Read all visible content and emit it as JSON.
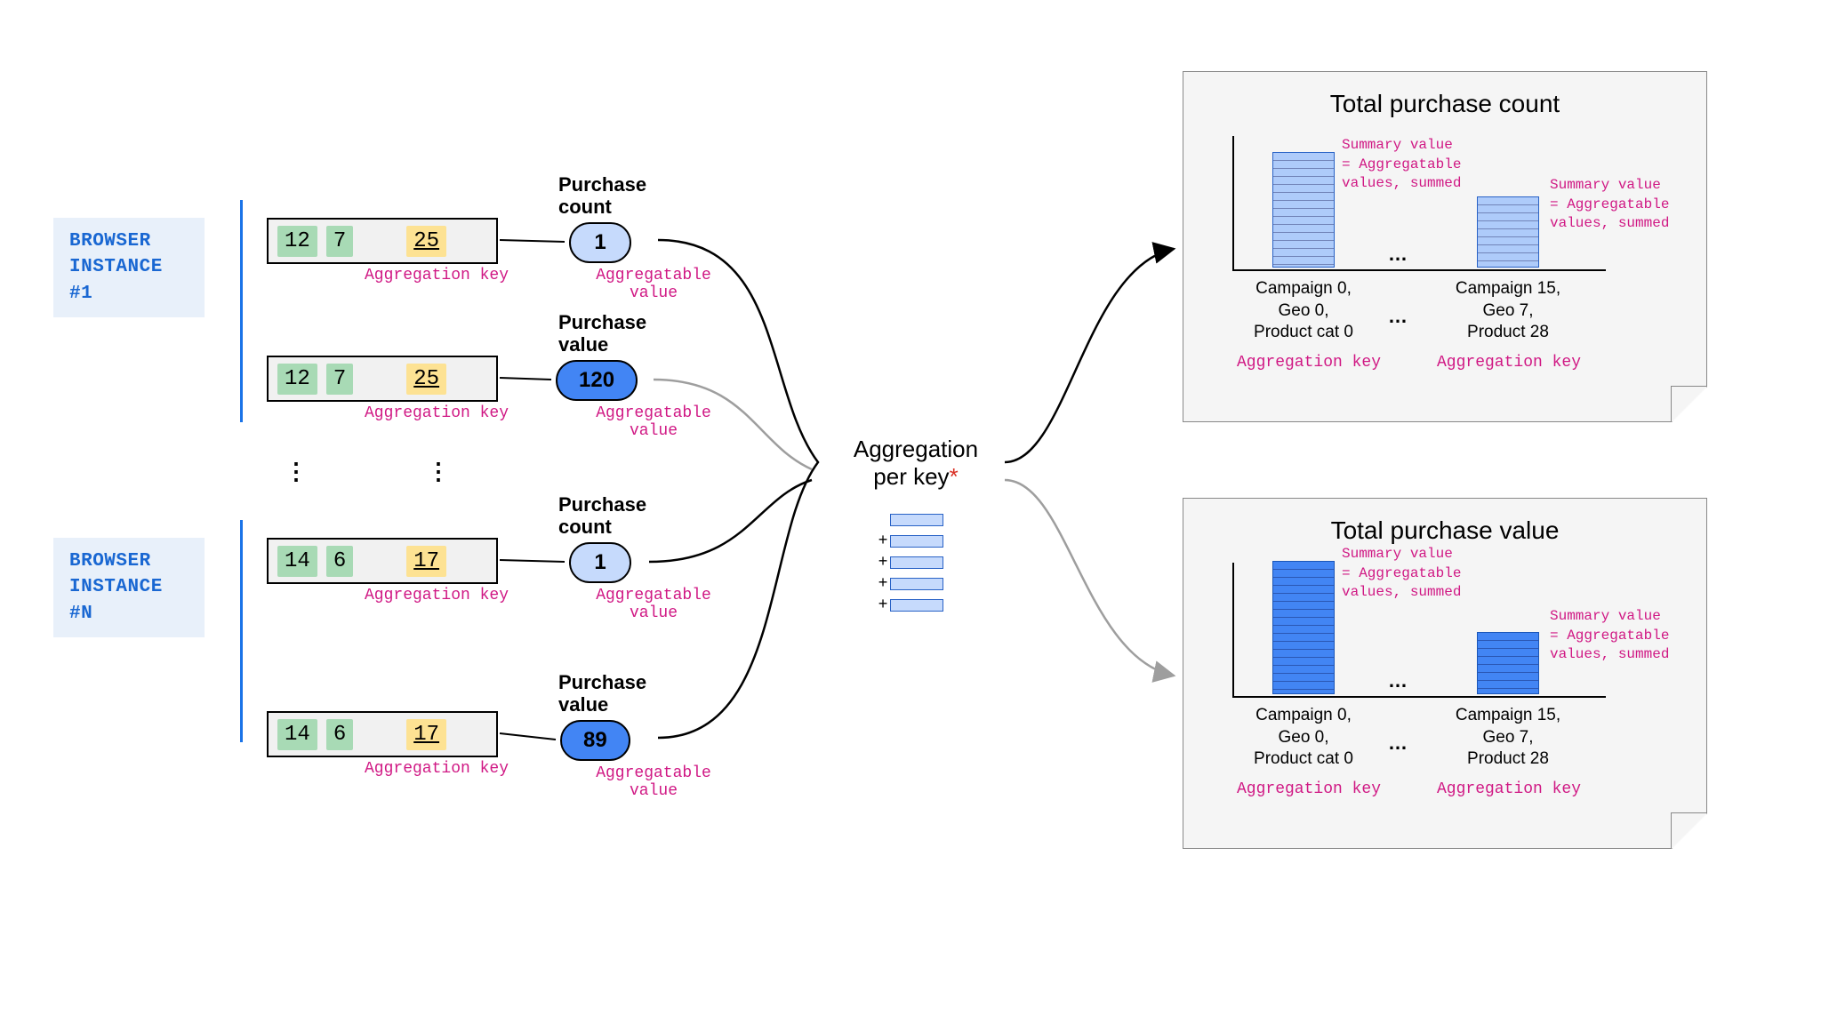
{
  "diagram": {
    "type": "flowchart",
    "background_color": "#ffffff"
  },
  "colors": {
    "browser_label_bg": "#e8f0fa",
    "browser_label_text": "#1967d2",
    "vbar": "#1a73e8",
    "keybox_bg": "#f1f1f1",
    "keycell_green": "#a8dab5",
    "keycell_yellow": "#fde293",
    "pink": "#d01884",
    "pill_light": "#c6dafc",
    "pill_dark": "#4285f4",
    "asterisk": "#d93025",
    "panel_bg": "#f5f5f5",
    "panel_border": "#888888",
    "bar_light_fill": "#aecbfa",
    "bar_light_border": "#2962c6",
    "bar_dark_fill": "#4285f4",
    "bar_dark_border": "#1a56b8",
    "arrow_black": "#000000",
    "arrow_gray": "#9e9e9e"
  },
  "fontsizes": {
    "browser_label": 21,
    "keycell": 24,
    "pink_caption": 18,
    "pill_title": 22,
    "pill_value": 24,
    "agg_label": 26,
    "panel_title": 28,
    "pink_note": 16,
    "x_label": 19
  },
  "browser1": {
    "line1": "BROWSER",
    "line2": "INSTANCE #1"
  },
  "browserN": {
    "line1": "BROWSER",
    "line2": "INSTANCE #N"
  },
  "keyrow1": {
    "a": "12",
    "b": "7",
    "c": "25"
  },
  "keyrow2": {
    "a": "12",
    "b": "7",
    "c": "25"
  },
  "keyrow3": {
    "a": "14",
    "b": "6",
    "c": "17"
  },
  "keyrow4": {
    "a": "14",
    "b": "6",
    "c": "17"
  },
  "captions": {
    "aggkey": "Aggregation key",
    "aggval_l1": "Aggregatable",
    "aggval_l2": "value"
  },
  "pill1": {
    "title_l1": "Purchase",
    "title_l2": "count",
    "value": "1"
  },
  "pill2": {
    "title_l1": "Purchase",
    "title_l2": "value",
    "value": "120"
  },
  "pill3": {
    "title_l1": "Purchase",
    "title_l2": "count",
    "value": "1"
  },
  "pill4": {
    "title_l1": "Purchase",
    "title_l2": "value",
    "value": "89"
  },
  "agg": {
    "l1": "Aggregation",
    "l2": "per key",
    "ast": "*"
  },
  "panelA": {
    "title": "Total purchase count",
    "note_l1": "Summary value",
    "note_l2": "= Aggregatable",
    "note_l3": "values, summed",
    "bar1_height": 130,
    "bar2_height": 80,
    "x1_l1": "Campaign 0,",
    "x1_l2": "Geo 0,",
    "x1_l3": "Product cat 0",
    "x2_l1": "Campaign 15,",
    "x2_l2": "Geo 7,",
    "x2_l3": "Product 28",
    "keylabel": "Aggregation key"
  },
  "panelB": {
    "title": "Total purchase value",
    "note_l1": "Summary value",
    "note_l2": "= Aggregatable",
    "note_l3": "values, summed",
    "bar1_height": 150,
    "bar2_height": 70,
    "x1_l1": "Campaign 0,",
    "x1_l2": "Geo 0,",
    "x1_l3": "Product cat 0",
    "x2_l1": "Campaign 15,",
    "x2_l2": "Geo 7,",
    "x2_l3": "Product 28",
    "keylabel": "Aggregation key"
  },
  "misc": {
    "dots": "⋮",
    "hdots": "…",
    "plus": "+"
  }
}
